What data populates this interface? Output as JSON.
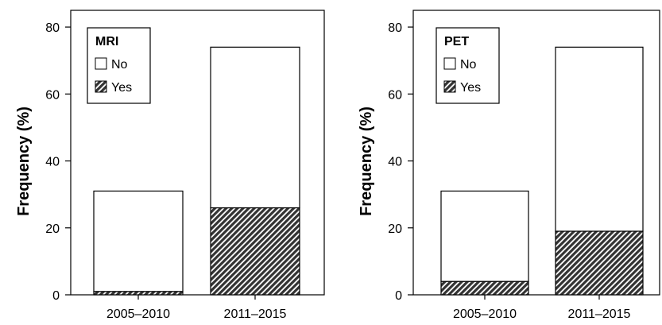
{
  "chart_data": [
    {
      "type": "bar",
      "stacked": true,
      "categories": [
        "2005–2010",
        "2011–2015"
      ],
      "series": [
        {
          "name": "Yes",
          "values": [
            1,
            26
          ],
          "fill": "hatched",
          "color": "#333333"
        },
        {
          "name": "No",
          "values": [
            30,
            48
          ],
          "fill": "#ffffff",
          "color": "#ffffff"
        }
      ],
      "legend_title": "MRI",
      "legend_position": "top-left",
      "ylabel": "Frequency (%)",
      "xlabel": "",
      "ylim": [
        0,
        85
      ],
      "yticks": [
        0,
        20,
        40,
        60,
        80
      ],
      "grid": false
    },
    {
      "type": "bar",
      "stacked": true,
      "categories": [
        "2005–2010",
        "2011–2015"
      ],
      "series": [
        {
          "name": "Yes",
          "values": [
            4,
            19
          ],
          "fill": "hatched",
          "color": "#333333"
        },
        {
          "name": "No",
          "values": [
            27,
            55
          ],
          "fill": "#ffffff",
          "color": "#ffffff"
        }
      ],
      "legend_title": "PET",
      "legend_position": "top-left",
      "ylabel": "Frequency (%)",
      "xlabel": "",
      "ylim": [
        0,
        85
      ],
      "yticks": [
        0,
        20,
        40,
        60,
        80
      ],
      "grid": false
    }
  ]
}
